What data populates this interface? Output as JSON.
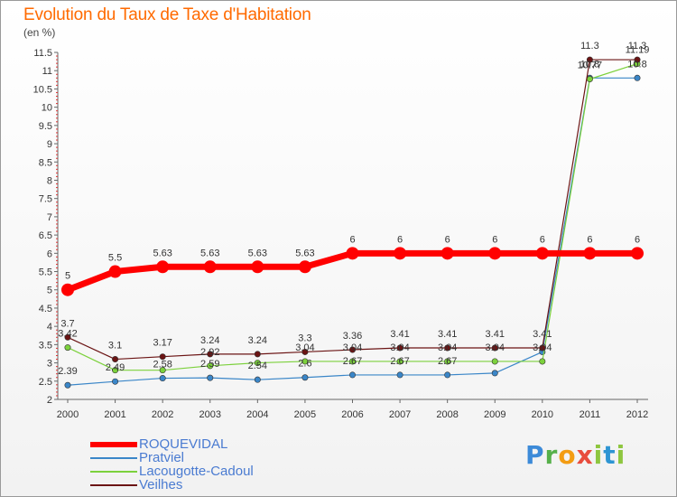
{
  "header": {
    "title": "Evolution du Taux de Taxe d'Habitation",
    "unit": "(en %)"
  },
  "logo": {
    "text": "Proxiti"
  },
  "chart_data": {
    "type": "line",
    "title": "Evolution du Taux de Taxe d'Habitation",
    "ylabel": "(en %)",
    "x": [
      "2000",
      "2001",
      "2002",
      "2003",
      "2004",
      "2005",
      "2006",
      "2007",
      "2008",
      "2009",
      "2010",
      "2011",
      "2012"
    ],
    "y_ticks": [
      "2",
      "2.5",
      "3",
      "3.5",
      "4",
      "4.5",
      "5",
      "5.5",
      "6",
      "6.5",
      "7",
      "7.5",
      "8",
      "8.5",
      "9",
      "9.5",
      "10",
      "10.5",
      "11",
      "11.5"
    ],
    "ylim": [
      2,
      11.5
    ],
    "legend_position": "bottom-left",
    "series": [
      {
        "name": "ROQUEVIDAL",
        "color": "#ff0000",
        "values": [
          5,
          5.5,
          5.63,
          5.63,
          5.63,
          5.63,
          6,
          6,
          6,
          6,
          6,
          6,
          6
        ],
        "labels": [
          "5",
          "5.5",
          "5.63",
          "5.63",
          "5.63",
          "5.63",
          "6",
          "6",
          "6",
          "6",
          "6",
          "6",
          "6"
        ]
      },
      {
        "name": "Pratviel",
        "color": "#3a86c8",
        "values": [
          2.39,
          2.49,
          2.58,
          2.59,
          2.54,
          2.6,
          2.67,
          2.67,
          2.67,
          2.72,
          3.3,
          10.8,
          10.8
        ],
        "labels": [
          "2.39",
          "2.49",
          "2.58",
          "2.59",
          "2.54",
          "2.6",
          "2.67",
          "2.67",
          "2.67",
          "",
          "",
          "10.8",
          "10.8"
        ]
      },
      {
        "name": "Lacougotte-Cadoul",
        "color": "#7cd13c",
        "values": [
          3.42,
          2.8,
          2.8,
          2.92,
          3.0,
          3.04,
          3.04,
          3.04,
          3.04,
          3.04,
          3.04,
          10.77,
          11.19
        ],
        "labels": [
          "3.42",
          "",
          "",
          "2.92",
          "",
          "3.04",
          "3.04",
          "3.04",
          "3.04",
          "3.04",
          "3.04",
          "10.77",
          "11.19"
        ]
      },
      {
        "name": "Veilhes",
        "color": "#6b1414",
        "values": [
          3.7,
          3.1,
          3.17,
          3.24,
          3.24,
          3.3,
          3.36,
          3.41,
          3.41,
          3.41,
          3.41,
          11.3,
          11.3
        ],
        "labels": [
          "3.7",
          "3.1",
          "3.17",
          "3.24",
          "3.24",
          "3.3",
          "3.36",
          "3.41",
          "3.41",
          "3.41",
          "3.41",
          "11.3",
          "11.3"
        ]
      }
    ]
  }
}
